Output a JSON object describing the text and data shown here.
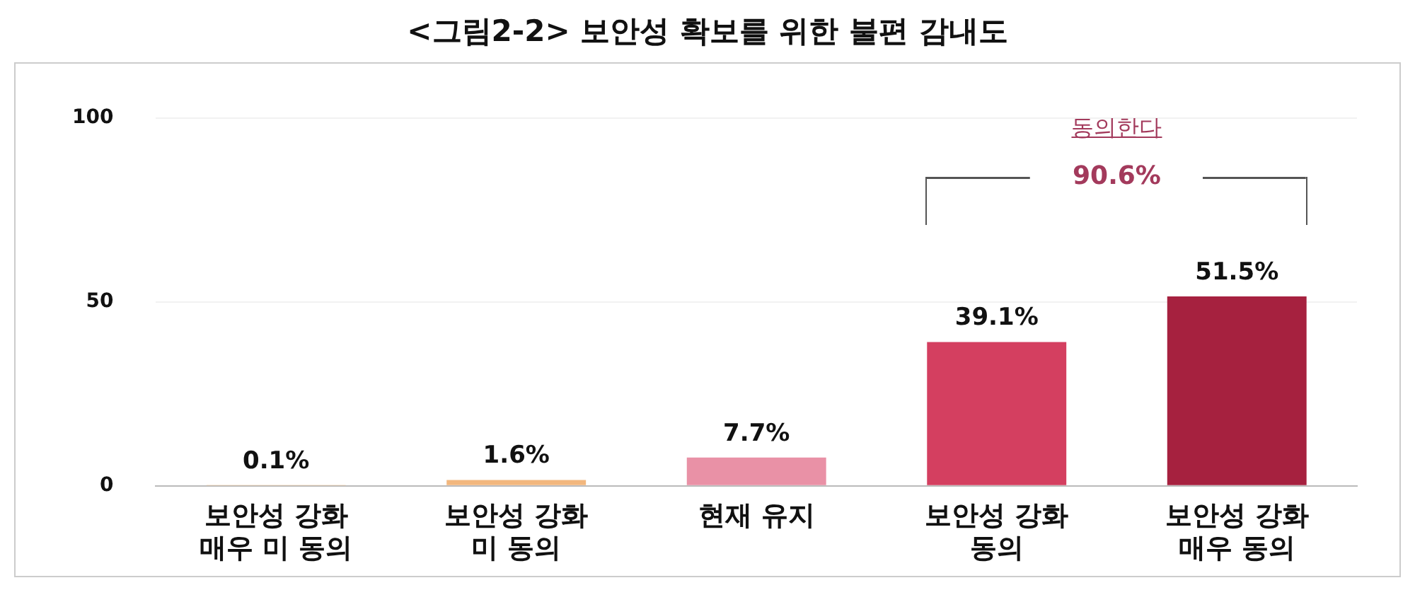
{
  "chart_data": {
    "type": "bar",
    "title": "<그림2-2> 보안성 확보를 위한 불편 감내도",
    "categories": [
      "보안성 강화\n매우 미 동의",
      "보안성 강화\n미 동의",
      "현재 유지",
      "보안성 강화\n동의",
      "보안성 강화\n매우 동의"
    ],
    "values": [
      0.1,
      1.6,
      7.7,
      39.1,
      51.5
    ],
    "colors": [
      "#f2b77e",
      "#f2b77e",
      "#e991a6",
      "#d43f60",
      "#a6213f"
    ],
    "value_labels": [
      "0.1%",
      "1.6%",
      "7.7%",
      "39.1%",
      "51.5%"
    ],
    "annotations": [
      "동의한다",
      "90.6%"
    ],
    "ylim": [
      0,
      100
    ],
    "yticks": [
      0,
      50,
      100
    ],
    "grid": "y",
    "legend": false
  }
}
